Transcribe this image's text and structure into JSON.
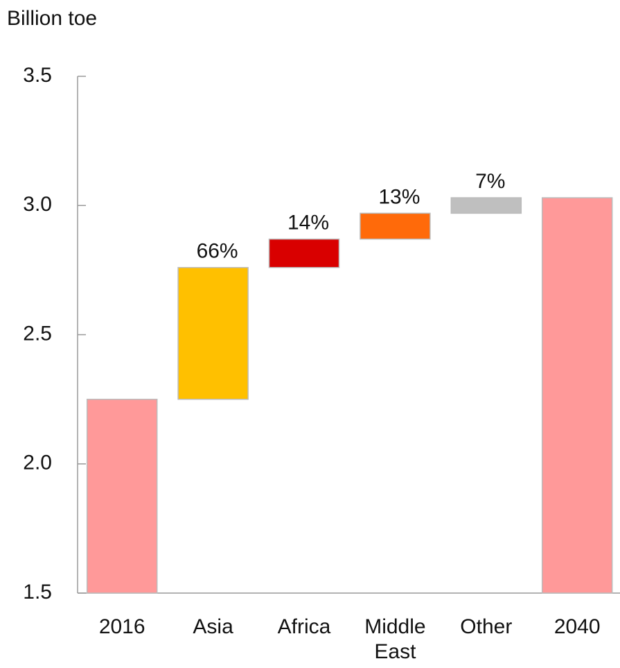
{
  "chart_data": {
    "type": "waterfall",
    "y_label": "Billion toe",
    "categories": [
      "2016",
      "Asia",
      "Africa",
      "Middle East",
      "Other",
      "2040"
    ],
    "values": [
      2.25,
      0.51,
      0.11,
      0.1,
      0.06,
      3.03
    ],
    "totals": [
      true,
      false,
      false,
      false,
      false,
      true
    ],
    "colors": [
      "#ff9999",
      "#ffc000",
      "#d90000",
      "#ff6a0a",
      "#bfbfbf",
      "#ff9999"
    ],
    "shares": [
      null,
      66,
      14,
      13,
      7,
      null
    ],
    "share_labels": [
      null,
      "66%",
      "14%",
      "13%",
      "7%",
      null
    ],
    "ylim": [
      1.5,
      3.5
    ],
    "yticks": [
      {
        "value": 1.5,
        "label": "1.5"
      },
      {
        "value": 2.0,
        "label": "2.0"
      },
      {
        "value": 2.5,
        "label": "2.5"
      },
      {
        "value": 3.0,
        "label": "3.0"
      },
      {
        "value": 3.5,
        "label": "3.5"
      }
    ]
  }
}
